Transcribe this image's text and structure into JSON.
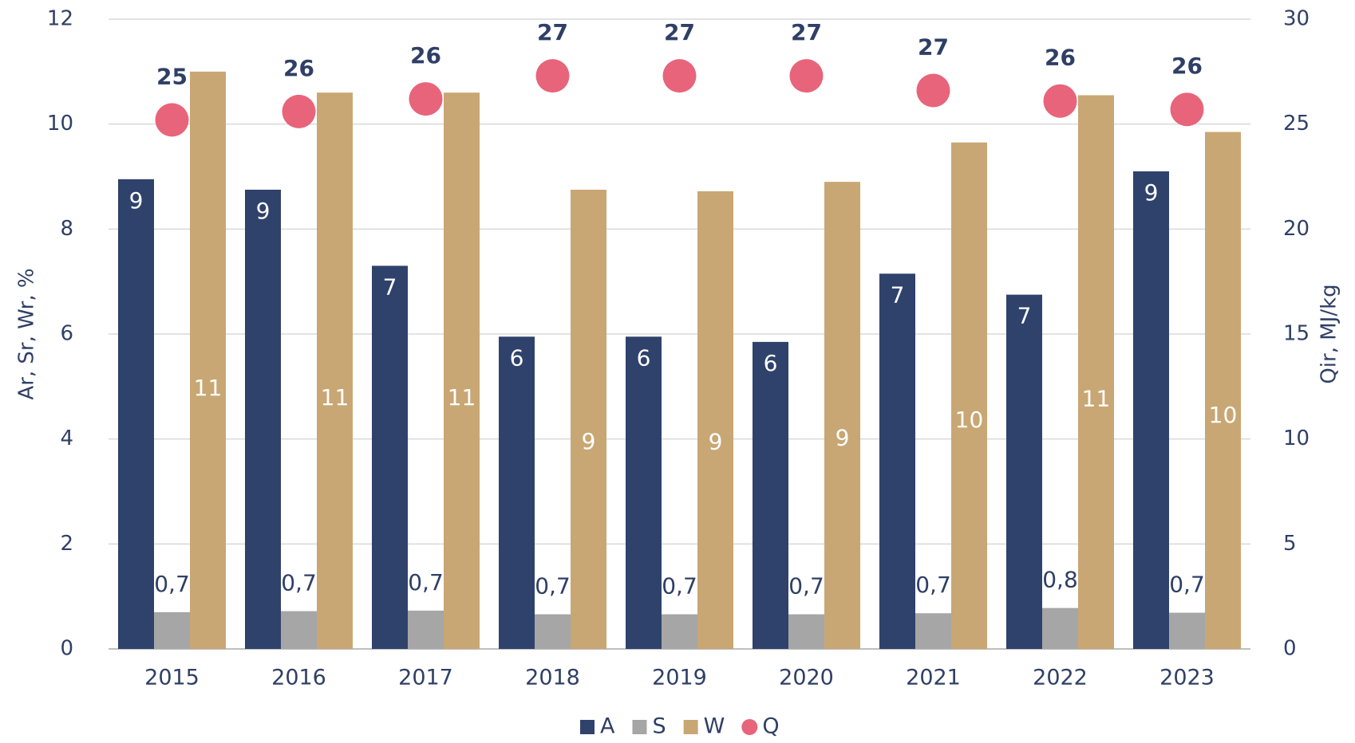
{
  "chart_data": {
    "type": "bar",
    "categories": [
      "2015",
      "2016",
      "2017",
      "2018",
      "2019",
      "2020",
      "2021",
      "2022",
      "2023"
    ],
    "series": [
      {
        "name": "A",
        "type": "bar",
        "color": "#2f426b",
        "values": [
          8.95,
          8.75,
          7.3,
          5.95,
          5.95,
          5.85,
          7.15,
          6.75,
          9.1
        ],
        "value_labels": [
          "9",
          "9",
          "7",
          "6",
          "6",
          "6",
          "7",
          "7",
          "9"
        ]
      },
      {
        "name": "S",
        "type": "bar",
        "color": "#a6a6a6",
        "values": [
          0.7,
          0.72,
          0.73,
          0.66,
          0.66,
          0.66,
          0.68,
          0.78,
          0.69
        ],
        "value_labels": [
          "0,7",
          "0,7",
          "0,7",
          "0,7",
          "0,7",
          "0,7",
          "0,7",
          "0,8",
          "0,7"
        ]
      },
      {
        "name": "W",
        "type": "bar",
        "color": "#c8a774",
        "values": [
          11.0,
          10.6,
          10.6,
          8.75,
          8.72,
          8.9,
          9.65,
          10.55,
          9.85
        ],
        "value_labels": [
          "11",
          "11",
          "11",
          "9",
          "9",
          "9",
          "10",
          "11",
          "10"
        ]
      },
      {
        "name": "Q",
        "type": "scatter",
        "axis": "y2",
        "color": "#e8647a",
        "values": [
          25.2,
          25.6,
          26.2,
          27.3,
          27.3,
          27.3,
          26.6,
          26.1,
          25.7
        ],
        "value_labels": [
          "25",
          "26",
          "26",
          "27",
          "27",
          "27",
          "27",
          "26",
          "26"
        ]
      }
    ],
    "y_label": "Ar, Sr, Wr, %",
    "y2_label": "Qir, MJ/kg",
    "ylim": [
      0,
      12
    ],
    "yticks": [
      0,
      2,
      4,
      6,
      8,
      10,
      12
    ],
    "y2lim": [
      0,
      30
    ],
    "y2ticks": [
      0,
      5,
      10,
      15,
      20,
      25,
      30
    ],
    "grid": true,
    "legend": "bottom"
  }
}
